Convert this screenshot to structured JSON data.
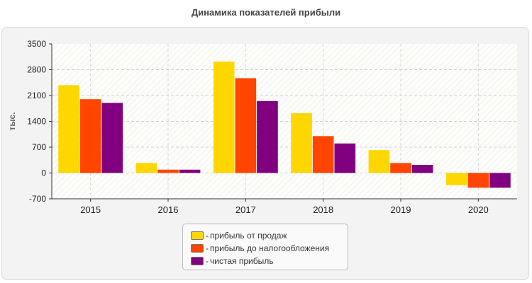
{
  "chart_data": {
    "type": "bar",
    "title": "Динамика показателей прибыли",
    "ylabel": "тыс.",
    "xlabel": "",
    "categories": [
      "2015",
      "2016",
      "2017",
      "2018",
      "2019",
      "2020"
    ],
    "ylim": [
      -700,
      3500
    ],
    "yticks": [
      -700,
      0,
      700,
      1400,
      2100,
      2800,
      3500
    ],
    "grid": true,
    "legend_position": "bottom-center",
    "series": [
      {
        "name": "прибыль от продаж",
        "color": "#FFD700",
        "values": [
          2380,
          270,
          3020,
          1620,
          620,
          -330
        ]
      },
      {
        "name": "прибыль до налогообложения",
        "color": "#FF4500",
        "values": [
          2000,
          90,
          2570,
          1000,
          270,
          -400
        ]
      },
      {
        "name": "чистая прибыль",
        "color": "#800080",
        "values": [
          1900,
          90,
          1950,
          800,
          220,
          -400
        ]
      }
    ]
  }
}
